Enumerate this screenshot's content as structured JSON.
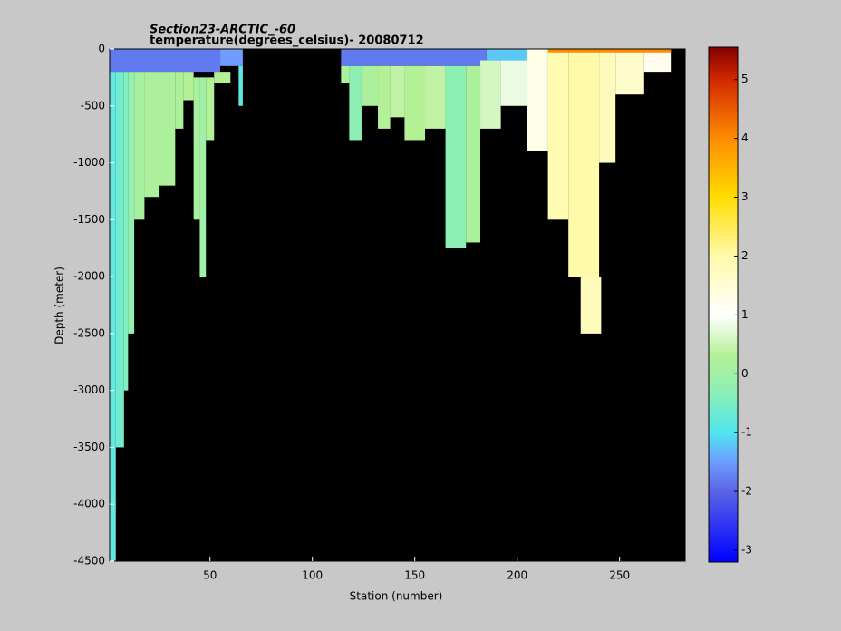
{
  "chart_data": {
    "type": "section",
    "title": "Section23-ARCTIC_-60",
    "subtitle": "temperature(degrees_celsius)- 20080712",
    "xlabel": "Station (number)",
    "ylabel": "Depth (meter)",
    "xlim": [
      1,
      282
    ],
    "xticks": [
      50,
      100,
      150,
      200,
      250
    ],
    "ylim": [
      -4500,
      0
    ],
    "yticks": [
      0,
      -500,
      -1000,
      -1500,
      -2000,
      -2500,
      -3000,
      -3500,
      -4000,
      -4500
    ],
    "clim": [
      -3.2,
      5.55
    ],
    "cticks": [
      -3,
      -2,
      -1,
      0,
      1,
      2,
      3,
      4,
      5
    ],
    "background": "#000000",
    "colormap": [
      [
        -3.2,
        "#0000ff"
      ],
      [
        -2,
        "#5a64e6"
      ],
      [
        -1.5,
        "#6e9cff"
      ],
      [
        -1,
        "#50e6f0"
      ],
      [
        -0.3,
        "#8cf0b4"
      ],
      [
        0.3,
        "#b4f096"
      ],
      [
        1,
        "#ffffff"
      ],
      [
        2,
        "#fffaaa"
      ],
      [
        3,
        "#ffdc00"
      ],
      [
        4,
        "#ff8c00"
      ],
      [
        5,
        "#d22800"
      ],
      [
        5.55,
        "#820000"
      ]
    ],
    "cells": [
      {
        "x": [
          1,
          55
        ],
        "depth": [
          0,
          -200
        ],
        "temp": -1.8
      },
      {
        "x": [
          55,
          66
        ],
        "depth": [
          0,
          -150
        ],
        "temp": -1.5
      },
      {
        "x": [
          1,
          4
        ],
        "depth": [
          -200,
          -4500
        ],
        "temp": -0.8
      },
      {
        "x": [
          4,
          8
        ],
        "depth": [
          -200,
          -3500
        ],
        "temp": -0.6
      },
      {
        "x": [
          8,
          10
        ],
        "depth": [
          -200,
          -3000
        ],
        "temp": -0.4
      },
      {
        "x": [
          10,
          13
        ],
        "depth": [
          -200,
          -2500
        ],
        "temp": -0.2
      },
      {
        "x": [
          13,
          18
        ],
        "depth": [
          -200,
          -1500
        ],
        "temp": 0.1
      },
      {
        "x": [
          18,
          25
        ],
        "depth": [
          -200,
          -1300
        ],
        "temp": 0.2
      },
      {
        "x": [
          25,
          33
        ],
        "depth": [
          -200,
          -1200
        ],
        "temp": 0.2
      },
      {
        "x": [
          33,
          37
        ],
        "depth": [
          -200,
          -700
        ],
        "temp": 0.2
      },
      {
        "x": [
          37,
          42
        ],
        "depth": [
          -200,
          -450
        ],
        "temp": 0.3
      },
      {
        "x": [
          42,
          45
        ],
        "depth": [
          -250,
          -1500
        ],
        "temp": 0.1
      },
      {
        "x": [
          45,
          48
        ],
        "depth": [
          -250,
          -2000
        ],
        "temp": 0
      },
      {
        "x": [
          48,
          52
        ],
        "depth": [
          -250,
          -800
        ],
        "temp": 0.3
      },
      {
        "x": [
          52,
          60
        ],
        "depth": [
          -200,
          -300
        ],
        "temp": 0.3
      },
      {
        "x": [
          64,
          66
        ],
        "depth": [
          -150,
          -500
        ],
        "temp": -0.8
      },
      {
        "x": [
          114,
          185
        ],
        "depth": [
          0,
          -150
        ],
        "temp": -1.8
      },
      {
        "x": [
          185,
          210
        ],
        "depth": [
          0,
          -100
        ],
        "temp": -1.2
      },
      {
        "x": [
          114,
          118
        ],
        "depth": [
          -150,
          -300
        ],
        "temp": 0.2
      },
      {
        "x": [
          118,
          124
        ],
        "depth": [
          -150,
          -800
        ],
        "temp": -0.3
      },
      {
        "x": [
          124,
          132
        ],
        "depth": [
          -150,
          -500
        ],
        "temp": 0.2
      },
      {
        "x": [
          132,
          138
        ],
        "depth": [
          -150,
          -700
        ],
        "temp": 0.3
      },
      {
        "x": [
          138,
          145
        ],
        "depth": [
          -150,
          -600
        ],
        "temp": 0.4
      },
      {
        "x": [
          145,
          155
        ],
        "depth": [
          -150,
          -800
        ],
        "temp": 0.3
      },
      {
        "x": [
          155,
          165
        ],
        "depth": [
          -150,
          -700
        ],
        "temp": 0.4
      },
      {
        "x": [
          165,
          175
        ],
        "depth": [
          -150,
          -1750
        ],
        "temp": -0.3
      },
      {
        "x": [
          175,
          182
        ],
        "depth": [
          -150,
          -1700
        ],
        "temp": 0.2
      },
      {
        "x": [
          182,
          192
        ],
        "depth": [
          -100,
          -700
        ],
        "temp": 0.6
      },
      {
        "x": [
          192,
          205
        ],
        "depth": [
          -100,
          -500
        ],
        "temp": 0.8
      },
      {
        "x": [
          205,
          215
        ],
        "depth": [
          0,
          -900
        ],
        "temp": 1.3
      },
      {
        "x": [
          215,
          225
        ],
        "depth": [
          0,
          -1500
        ],
        "temp": 1.9
      },
      {
        "x": [
          225,
          240
        ],
        "depth": [
          0,
          -2000
        ],
        "temp": 2
      },
      {
        "x": [
          231,
          241
        ],
        "depth": [
          -2000,
          -2500
        ],
        "temp": 1.8
      },
      {
        "x": [
          240,
          248
        ],
        "depth": [
          0,
          -1000
        ],
        "temp": 1.8
      },
      {
        "x": [
          248,
          262
        ],
        "depth": [
          0,
          -400
        ],
        "temp": 1.6
      },
      {
        "x": [
          262,
          275
        ],
        "depth": [
          0,
          -200
        ],
        "temp": 1.2
      },
      {
        "x": [
          215,
          275
        ],
        "depth": [
          0,
          -30
        ],
        "temp": 4
      }
    ]
  }
}
